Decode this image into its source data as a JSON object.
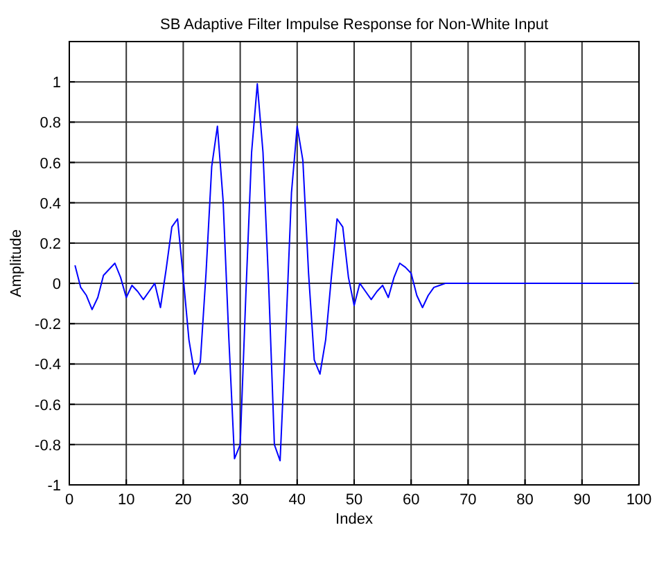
{
  "chart_data": {
    "type": "line",
    "title": "SB Adaptive Filter Impulse Response for Non-White Input",
    "xlabel": "Index",
    "ylabel": "Amplitude",
    "x": [
      1,
      2,
      3,
      4,
      5,
      6,
      7,
      8,
      9,
      10,
      11,
      12,
      13,
      14,
      15,
      16,
      17,
      18,
      19,
      20,
      21,
      22,
      23,
      24,
      25,
      26,
      27,
      28,
      29,
      30,
      31,
      32,
      33,
      34,
      35,
      36,
      37,
      38,
      39,
      40,
      41,
      42,
      43,
      44,
      45,
      46,
      47,
      48,
      49,
      50,
      51,
      52,
      53,
      54,
      55,
      56,
      57,
      58,
      59,
      60,
      61,
      62,
      63,
      64,
      65,
      66,
      67,
      68,
      69,
      70,
      71,
      72,
      73,
      74,
      75,
      76,
      77,
      78,
      79,
      80,
      81,
      82,
      83,
      84,
      85,
      86,
      87,
      88,
      89,
      90,
      91,
      92,
      93,
      94,
      95,
      96,
      97,
      98,
      99
    ],
    "series": [
      {
        "color": "#0000ff",
        "values": [
          0.09,
          -0.02,
          -0.06,
          -0.13,
          -0.07,
          0.04,
          0.07,
          0.1,
          0.03,
          -0.07,
          -0.01,
          -0.04,
          -0.08,
          -0.04,
          0.0,
          -0.12,
          0.07,
          0.28,
          0.32,
          0.03,
          -0.28,
          -0.45,
          -0.39,
          0.05,
          0.58,
          0.78,
          0.41,
          -0.27,
          -0.87,
          -0.8,
          -0.05,
          0.65,
          0.99,
          0.65,
          -0.01,
          -0.8,
          -0.88,
          -0.25,
          0.45,
          0.78,
          0.61,
          0.05,
          -0.38,
          -0.45,
          -0.28,
          0.03,
          0.32,
          0.28,
          0.03,
          -0.11,
          0.0,
          -0.04,
          -0.08,
          -0.04,
          -0.01,
          -0.07,
          0.03,
          0.1,
          0.08,
          0.05,
          -0.06,
          -0.12,
          -0.06,
          -0.02,
          -0.01,
          0,
          0,
          0,
          0,
          0,
          0,
          0,
          0,
          0,
          0,
          0,
          0,
          0,
          0,
          0,
          0,
          0,
          0,
          0,
          0,
          0,
          0,
          0,
          0,
          0,
          0,
          0,
          0,
          0,
          0,
          0,
          0,
          0,
          0
        ]
      }
    ],
    "xlim": [
      0,
      100
    ],
    "ylim": [
      -1,
      1.2
    ],
    "xticks": [
      0,
      10,
      20,
      30,
      40,
      50,
      60,
      70,
      80,
      90,
      100
    ],
    "yticks": [
      -1,
      -0.8,
      -0.6,
      -0.4,
      -0.2,
      0,
      0.2,
      0.4,
      0.6,
      0.8,
      1
    ],
    "grid": true,
    "line_style": "solid",
    "marker": "none"
  }
}
